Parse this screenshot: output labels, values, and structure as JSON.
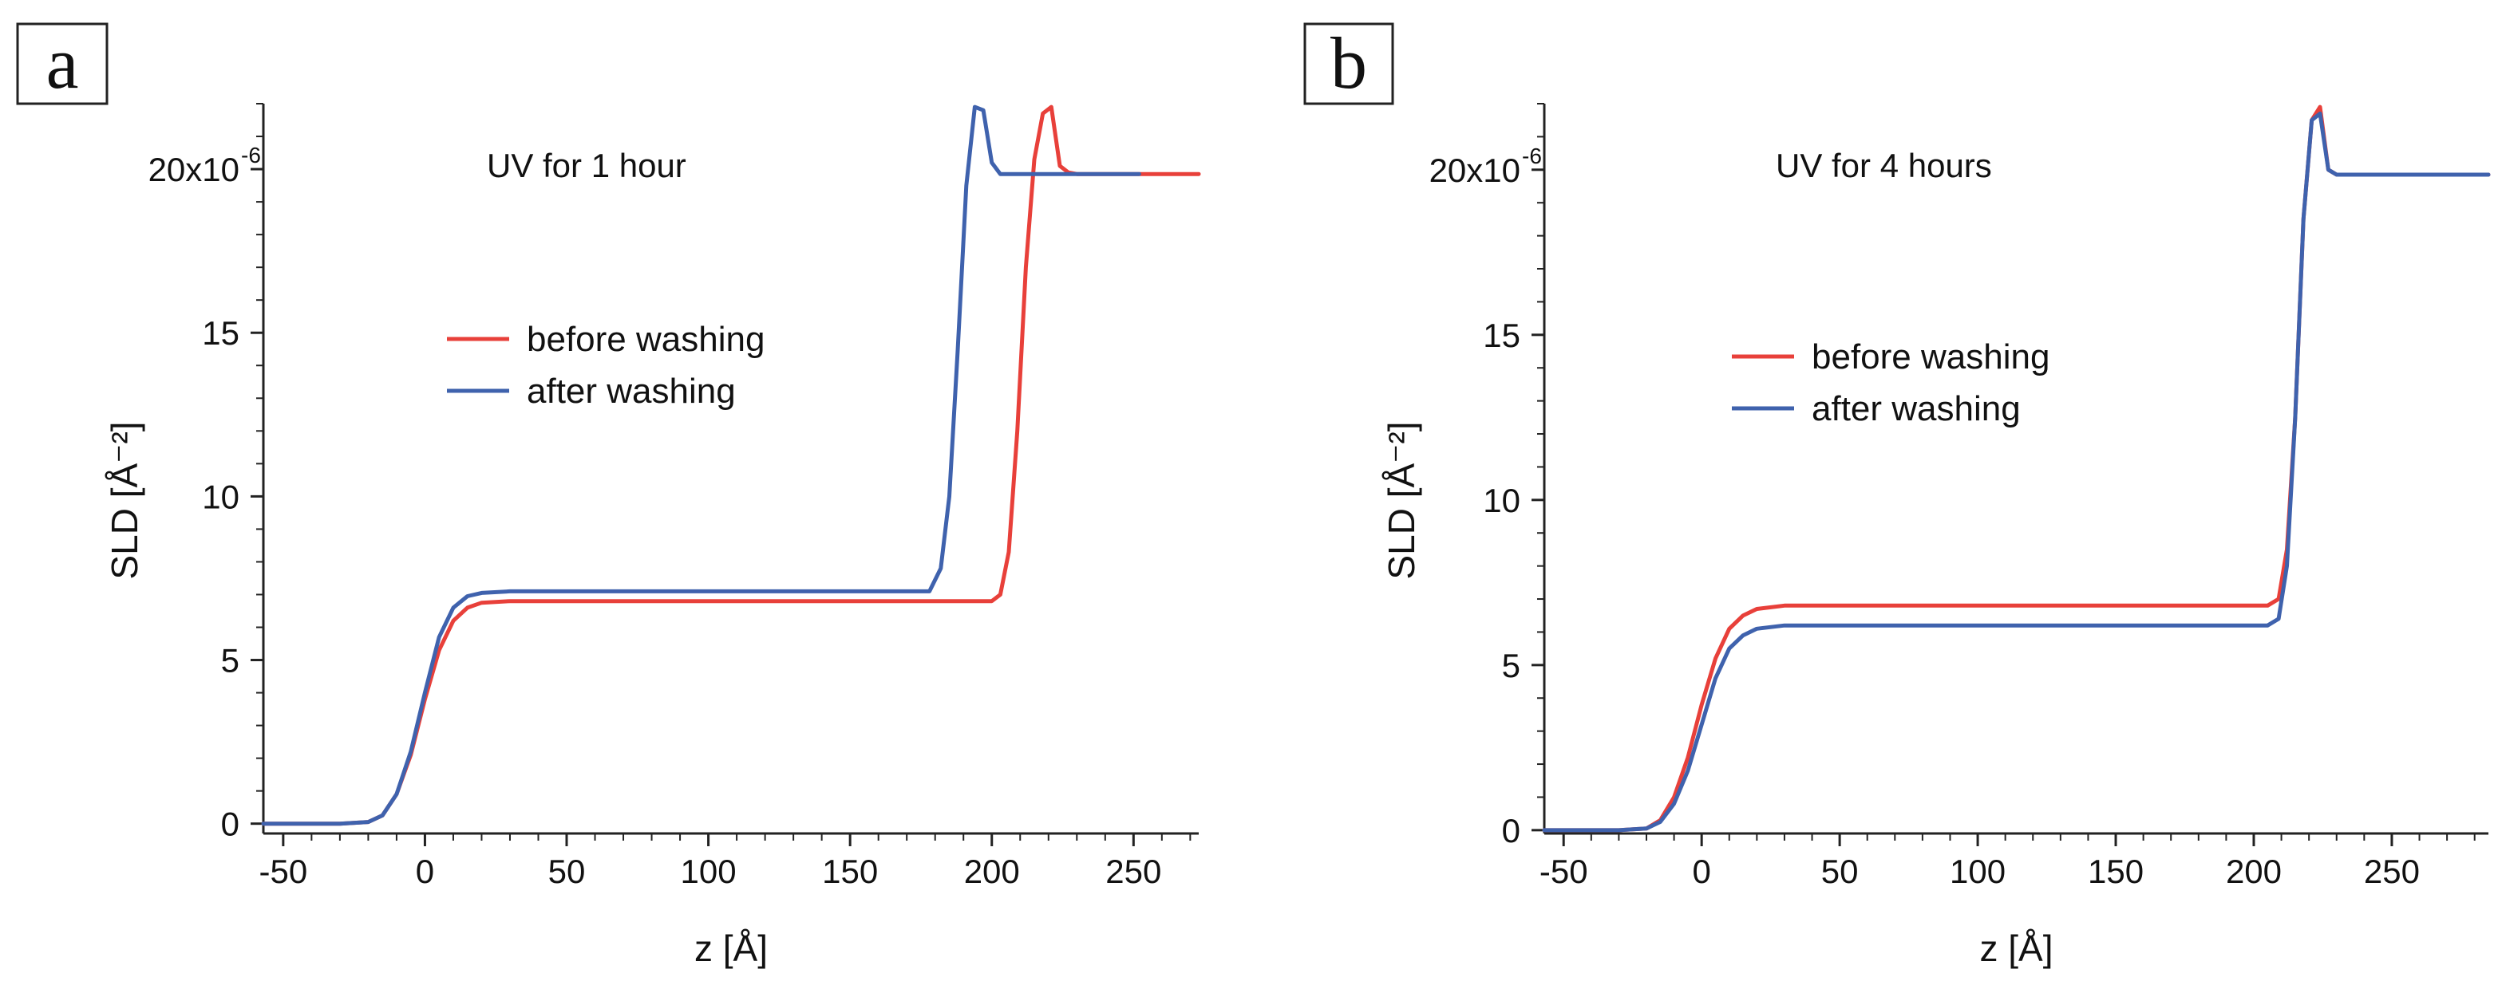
{
  "chart_data": [
    {
      "type": "line",
      "panel_label": "a",
      "annotation": "UV for 1 hour",
      "xlabel": "z [Å]",
      "ylabel": "SLD [Å⁻²]",
      "xlim": [
        -57,
        273
      ],
      "ylim": [
        -0.3,
        22.0
      ],
      "xticks": [
        -50,
        0,
        50,
        100,
        150,
        200,
        250
      ],
      "yticks": [
        0,
        5,
        10,
        15,
        20
      ],
      "ytick_labels": [
        "0",
        "5",
        "10",
        "15",
        "20x10"
      ],
      "ytick_exponent": "-6",
      "legend": [
        "before washing",
        "after washing"
      ],
      "series": [
        {
          "name": "before washing",
          "color": "#e8403a",
          "x": [
            -57,
            -30,
            -20,
            -15,
            -10,
            -5,
            0,
            5,
            10,
            15,
            20,
            30,
            100,
            180,
            200,
            203,
            206,
            209,
            212,
            215,
            218,
            221,
            224,
            227,
            230,
            273
          ],
          "y": [
            0,
            0,
            0.05,
            0.25,
            0.9,
            2.1,
            3.8,
            5.3,
            6.2,
            6.6,
            6.75,
            6.8,
            6.8,
            6.8,
            6.8,
            7.0,
            8.3,
            12.0,
            17.0,
            20.3,
            21.7,
            21.9,
            20.1,
            19.9,
            19.85,
            19.85
          ]
        },
        {
          "name": "after washing",
          "color": "#3f62ad",
          "x": [
            -57,
            -30,
            -20,
            -15,
            -10,
            -5,
            0,
            5,
            10,
            15,
            20,
            30,
            100,
            178,
            182,
            185,
            188,
            191,
            194,
            197,
            200,
            203,
            206,
            230,
            252
          ],
          "y": [
            0,
            0,
            0.05,
            0.25,
            0.9,
            2.2,
            4.0,
            5.7,
            6.6,
            6.95,
            7.05,
            7.1,
            7.1,
            7.1,
            7.8,
            10.0,
            14.5,
            19.5,
            21.9,
            21.8,
            20.2,
            19.85,
            19.85,
            19.85,
            19.85
          ]
        }
      ]
    },
    {
      "type": "line",
      "panel_label": "b",
      "annotation": "UV for 4 hours",
      "xlabel": "z [Å]",
      "ylabel": "SLD [Å⁻²]",
      "xlim": [
        -57,
        285
      ],
      "ylim": [
        -0.1,
        22.0
      ],
      "xticks": [
        -50,
        0,
        50,
        100,
        150,
        200,
        250
      ],
      "yticks": [
        0,
        5,
        10,
        15,
        20
      ],
      "ytick_labels": [
        "0",
        "5",
        "10",
        "15",
        "20x10"
      ],
      "ytick_exponent": "-6",
      "legend": [
        "before washing",
        "after washing"
      ],
      "series": [
        {
          "name": "before washing",
          "color": "#e8403a",
          "x": [
            -57,
            -30,
            -20,
            -15,
            -10,
            -5,
            0,
            5,
            10,
            15,
            20,
            30,
            100,
            205,
            209,
            212,
            215,
            218,
            221,
            224,
            227,
            230,
            233,
            285
          ],
          "y": [
            0,
            0,
            0.05,
            0.3,
            1.0,
            2.2,
            3.8,
            5.2,
            6.1,
            6.5,
            6.7,
            6.8,
            6.8,
            6.8,
            7.0,
            8.5,
            12.5,
            18.5,
            21.5,
            21.9,
            20.0,
            19.85,
            19.85,
            19.85
          ]
        },
        {
          "name": "after washing",
          "color": "#3f62ad",
          "x": [
            -57,
            -30,
            -20,
            -15,
            -10,
            -5,
            0,
            5,
            10,
            15,
            20,
            30,
            100,
            205,
            209,
            212,
            215,
            218,
            221,
            224,
            227,
            230,
            233,
            285
          ],
          "y": [
            0,
            0,
            0.05,
            0.25,
            0.8,
            1.8,
            3.2,
            4.6,
            5.5,
            5.9,
            6.1,
            6.2,
            6.2,
            6.2,
            6.4,
            8.0,
            12.5,
            18.5,
            21.5,
            21.7,
            20.0,
            19.85,
            19.85,
            19.85
          ]
        }
      ]
    }
  ]
}
